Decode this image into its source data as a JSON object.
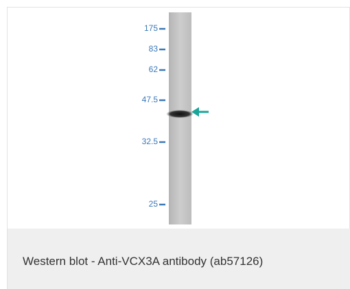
{
  "markers": [
    "175",
    "83",
    "62",
    "47.5",
    "32.5",
    "25"
  ],
  "caption": "Western blot - Anti-VCX3A antibody (ab57126)"
}
